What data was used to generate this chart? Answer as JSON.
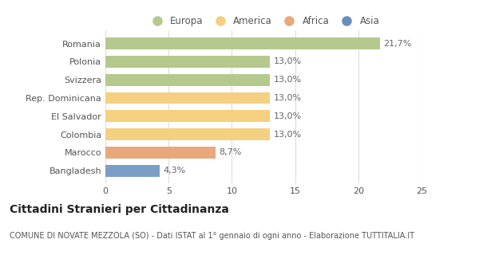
{
  "categories": [
    "Romania",
    "Polonia",
    "Svizzera",
    "Rep. Dominicana",
    "El Salvador",
    "Colombia",
    "Marocco",
    "Bangladesh"
  ],
  "values": [
    21.7,
    13.0,
    13.0,
    13.0,
    13.0,
    13.0,
    8.7,
    4.3
  ],
  "labels": [
    "21,7%",
    "13,0%",
    "13,0%",
    "13,0%",
    "13,0%",
    "13,0%",
    "8,7%",
    "4,3%"
  ],
  "colors": [
    "#b5c98e",
    "#b5c98e",
    "#b5c98e",
    "#f5d080",
    "#f5d080",
    "#f5d080",
    "#e8a87c",
    "#7b9ec7"
  ],
  "legend_labels": [
    "Europa",
    "America",
    "Africa",
    "Asia"
  ],
  "legend_colors": [
    "#b5c98e",
    "#f5d080",
    "#e8a87c",
    "#6b8cbf"
  ],
  "title": "Cittadini Stranieri per Cittadinanza",
  "subtitle": "COMUNE DI NOVATE MEZZOLA (SO) - Dati ISTAT al 1° gennaio di ogni anno - Elaborazione TUTTITALIA.IT",
  "xlim": [
    0,
    25
  ],
  "xticks": [
    0,
    5,
    10,
    15,
    20,
    25
  ],
  "background_color": "#ffffff",
  "bar_height": 0.65,
  "title_fontsize": 10,
  "subtitle_fontsize": 7,
  "tick_fontsize": 8,
  "label_fontsize": 8,
  "legend_fontsize": 8.5
}
